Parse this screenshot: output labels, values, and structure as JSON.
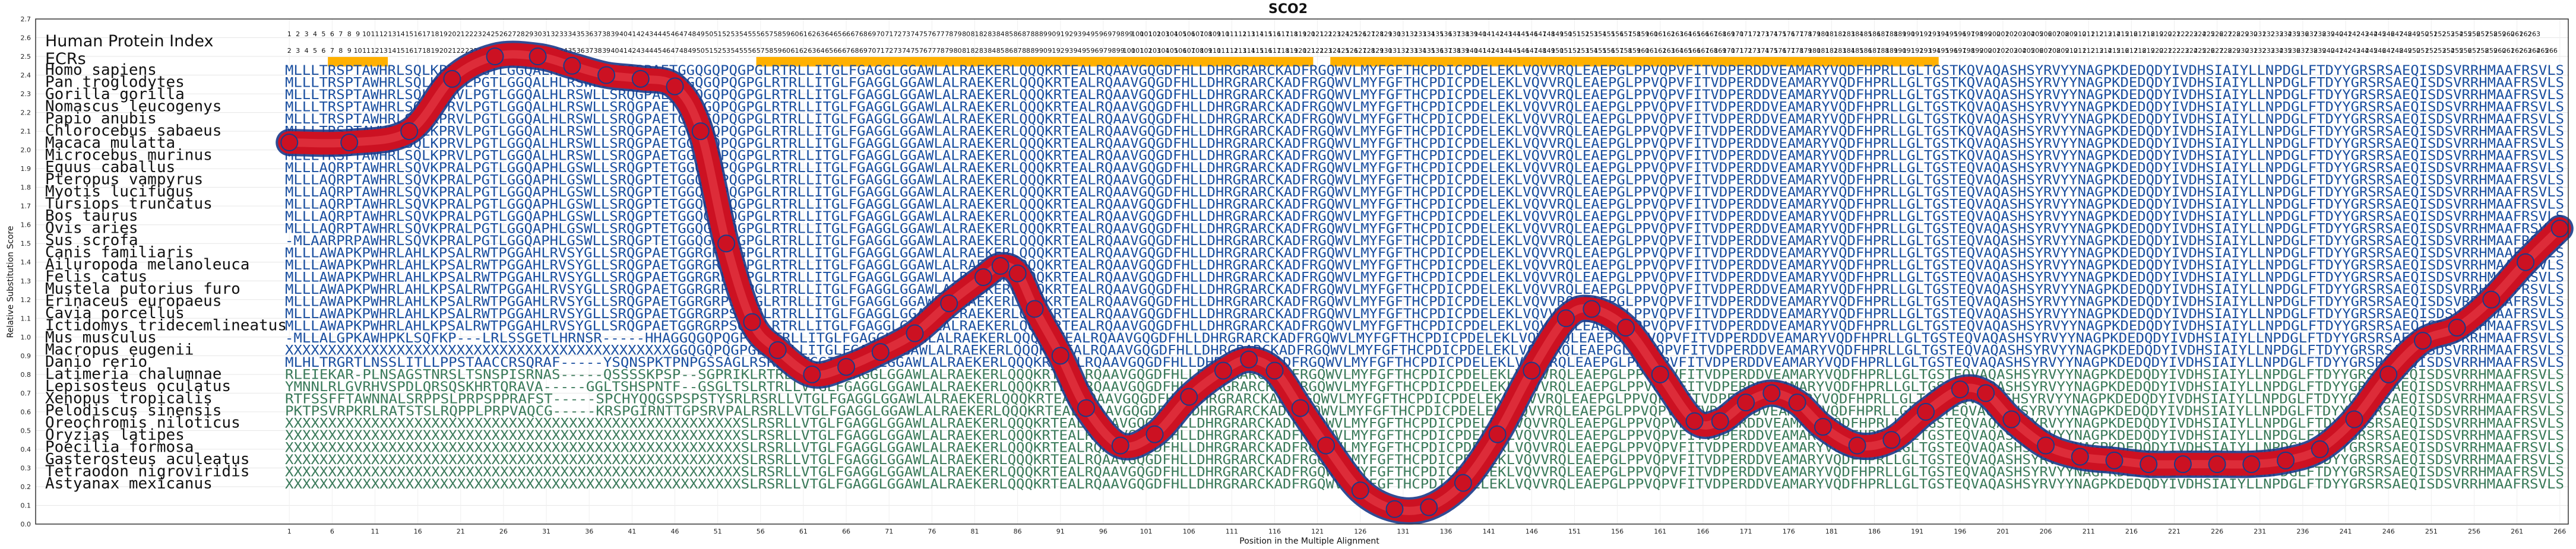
{
  "chart_data": {
    "type": "line",
    "title": "SCO2",
    "xlabel": "Position in the Multiple Alignment",
    "ylabel": "Relative Substitution Score",
    "ylim": [
      0,
      2.7
    ],
    "xlim": [
      1,
      266
    ],
    "y_ticks": [
      "0.0",
      "0.1",
      "0.2",
      "0.3",
      "0.4",
      "0.5",
      "0.6",
      "0.7",
      "0.8",
      "0.9",
      "1.0",
      "1.1",
      "1.2",
      "1.3",
      "1.4",
      "1.5",
      "1.6",
      "1.7",
      "1.8",
      "1.9",
      "2.0",
      "2.1",
      "2.2",
      "2.3",
      "2.4",
      "2.5",
      "2.6",
      "2.7"
    ],
    "x_ticks": [
      "1",
      "6",
      "11",
      "16",
      "21",
      "26",
      "31",
      "36",
      "41",
      "46",
      "51",
      "56",
      "61",
      "66",
      "71",
      "76",
      "81",
      "86",
      "91",
      "96",
      "101",
      "106",
      "111",
      "116",
      "121",
      "126",
      "131",
      "136",
      "141",
      "146",
      "151",
      "156",
      "161",
      "166",
      "171",
      "176",
      "181",
      "186",
      "191",
      "196",
      "201",
      "206",
      "211",
      "216",
      "221",
      "226",
      "231",
      "236",
      "241",
      "246",
      "251",
      "256",
      "261",
      "266"
    ],
    "grid": true,
    "legend": "none",
    "index_row_1": {
      "label": "Human Protein Index",
      "start": 1,
      "end": 263
    },
    "index_row_2": {
      "label": "ECRs",
      "start": 2,
      "end": 266,
      "highlight_ranges": [
        [
          6,
          12
        ],
        [
          56,
          120
        ],
        [
          123,
          193
        ]
      ]
    },
    "curve": {
      "name": "",
      "x": [
        1,
        8,
        15,
        20,
        25,
        30,
        34,
        38,
        42,
        46,
        49,
        52,
        55,
        58,
        62,
        66,
        70,
        74,
        78,
        82,
        84,
        86,
        88,
        91,
        94,
        98,
        102,
        106,
        110,
        113,
        116,
        119,
        122,
        126,
        130,
        134,
        138,
        142,
        146,
        150,
        153,
        157,
        161,
        165,
        168,
        171,
        174,
        177,
        180,
        184,
        188,
        192,
        196,
        199,
        202,
        206,
        210,
        214,
        218,
        222,
        226,
        230,
        234,
        238,
        242,
        246,
        250,
        254,
        258,
        262,
        266
      ],
      "y": [
        2.04,
        2.04,
        2.1,
        2.38,
        2.5,
        2.5,
        2.45,
        2.4,
        2.38,
        2.34,
        2.1,
        1.5,
        1.08,
        0.93,
        0.8,
        0.84,
        0.92,
        1.02,
        1.18,
        1.32,
        1.38,
        1.34,
        1.15,
        0.9,
        0.62,
        0.42,
        0.48,
        0.68,
        0.82,
        0.88,
        0.82,
        0.62,
        0.42,
        0.18,
        0.08,
        0.09,
        0.22,
        0.48,
        0.82,
        1.1,
        1.15,
        1.05,
        0.8,
        0.55,
        0.55,
        0.65,
        0.7,
        0.65,
        0.52,
        0.42,
        0.45,
        0.6,
        0.72,
        0.7,
        0.56,
        0.42,
        0.36,
        0.34,
        0.32,
        0.32,
        0.32,
        0.32,
        0.34,
        0.4,
        0.56,
        0.8,
        0.98,
        1.05,
        1.2,
        1.4,
        1.58
      ],
      "color": "#cc1122",
      "marker_edge_color": "#1a3a8a"
    },
    "alignment": {
      "species": [
        "Homo sapiens",
        "Pan troglodytes",
        "Gorilla gorilla",
        "Nomascus leucogenys",
        "Papio anubis",
        "Chlorocebus sabaeus",
        "Macaca mulatta",
        "Microcebus murinus",
        "Equus caballus",
        "Pteropus vampyrus",
        "Myotis lucifugus",
        "Tursiops truncatus",
        "Bos taurus",
        "Ovis aries",
        "Sus scrofa",
        "Canis familiaris",
        "Ailuropoda melanoleuca",
        "Felis catus",
        "Mustela putorius furo",
        "Erinaceus europaeus",
        "Cavia porcellus",
        "Ictidomys tridecemlineatus",
        "Mus musculus",
        "Macropus eugenii",
        "Danio rerio",
        "Latimeria chalumnae",
        "Lepisosteus oculatus",
        "Xenopus tropicalis",
        "Pelodiscus sinensis",
        "Oreochromis niloticus",
        "Oryzias latipes",
        "Poecilia formosa",
        "Gasterosteus aculeatus",
        "Tetraodon nigroviridis",
        "Astyanax mexicanus"
      ],
      "sequences": [
        "MLLLTRSPTAWHRLSQLKPRVLPGTLGGQALHLRSWLLSRQGPAETGGQGQPQGPGLRTRLLITGLFGAGGLGGAWLALRAEKERLQQQKRTEALRQAAVGQGDFHLLDHRGRARCKADFRGQWVLMYFGFTHCPDICPDELEKLVQVVRQLEAEPGLPPVQPVFITVDPERDDVEAMARYVQDFHPRLLGLTGSTKQVAQASHSYRVYYNAGPKDEDQDYIVDHSIAIYLLNPDGLFTDYYGRSRSAEQISDSVRRHMAAFRSVLS",
        "MLLLTRSPTAWHRLSQLKPRVLPGTLGGQALHLRSWLLSRQGPAETGGQGQPQGPGLRTRLLITGLFGAGGLGGAWLALRAEKERLQQQKRTEALRQAAVGQGDFHLLDHRGRARCKADFRGQWVLMYFGFTHCPDICPDELEKLVQVVRQLEAEPGLPPVQPVFITVDPERDDVEAMARYVQDFHPRLLGLTGSTKQVAQASHSYRVYYNAGPKDEDQDYIVDHSIAIYLLNPDGLFTDYYGRSRSAEQISDSVRRHMAAFRSVLS",
        "MLLLTRSPTAWHRLSQLKPRVLPGTLGGQALHLRSWLLSRQGPAETGGQGQPQGPGLRTRLLITGLFGAGGLGGAWLALRAEKERLQQQKRTEALRQAAVGQGDFHLLDHRGRARCKADFRGQWVLMYFGFTHCPDICPDELEKLVQVVRQLEAEPGLPPVQPVFITVDPERDDVEAMARYVQDFHPRLLGLTGSTKQVAQASHSYRVYYNAGPKDEDQDYIVDHSIAIYLLNPDGLFTDYYGRSRSAEQISDSVRRHMAAFRSVLS",
        "MLLLTRSPTAWHRLSQLKPRVLPGTLGGQALHLRSWLLSRQGPAETGGQGQPQGPGLRTRLLITGLFGAGGLGGAWLALRAEKERLQQQKRTEALRQAAVGQGDFHLLDHRGRARCKADFRGQWVLMYFGFTHCPDICPDELEKLVQVVRQLEAEPGLPPVQPVFITVDPERDDVEAMARYVQDFHPRLLGLTGSTKQVAQASHSYRVYYNAGPKDEDQDYIVDHSIAIYLLNPDGLFTDYYGRSRSAEQISDSVRRHMAAFRSVLS",
        "MLLLTRSPTAWHRLSQLKPRVLPGTLGGQALHLRSWLLSRQGPAETGGQGQPQGPGLRTRLLITGLFGAGGLGGAWLALRAEKERLQQQKRTEALRQAAVGQGDFHLLDHRGRARCKADFRGQWVLMYFGFTHCPDICPDELEKLVQVVRQLEAEPGLPPVQPVFITVDPERDDVEAMARYVQDFHPRLLGLTGSTKQVAQASHSYRVYYNAGPKDEDQDYIVDHSIAIYLLNPDGLFTDYYGRSRSAEQISDSVRRHMAAFRSVLS",
        "MLLLTRSPTAWHRLSQLKPRVLPGTLGGQALHLRSWLLSRQGPAETGGQGQPQGPGLRTRLLITGLFGAGGLGGAWLALRAEKERLQQQKRTEALRQAAVGQGDFHLLDHRGRARCKADFRGQWVLMYFGFTHCPDICPDELEKLVQVVRQLEAEPGLPPVQPVFITVDPERDDVEAMARYVQDFHPRLLGLTGSTKQVAQASHSYRVYYNAGPKDEDQDYIVDHSIAIYLLNPDGLFTDYYGRSRSAEQISDSVRRHMAAFRSVLS",
        "MLLLTRSPTAWHRLSQLKPRVLPGTLGGQALHLRSWLLSRQGPAETGGQGQPQGPGLRTRLLITGLFGAGGLGGAWLALRAEKERLQQQKRTEALRQAAVGQGDFHLLDHRGRARCKADFRGQWVLMYFGFTHCPDICPDELEKLVQVVRQLEAEPGLPPVQPVFITVDPERDDVEAMARYVQDFHPRLLGLTGSTKQVAQASHSYRVYYNAGPKDEDQDYIVDHSIAIYLLNPDGLFTDYYGRSRSAEQISDSVRRHMAAFRSVLS",
        "MLLLTRSPTAWHRLSQLKPRVLPGTLGGQALHLRSWLLSRQGPAETGGQGQPQGPGLRTRLLITGLFGAGGLGGAWLALRAEKERLQQQKRTEALRQAAVGQGDFHLLDHRGRARCKADFRGQWVLMYFGFTHCPDICPDELEKLVQVVRQLEAEPGLPPVQPVFITVDPERDDVEAMARYVQDFHPRLLGLTGSTKQVAQASHSYRVYYNAGPKDEDQDYIVDHSIAIYLLNPDGLFTDYYGRSRSAEQISDSVRRHMAAFRSVLS",
        "MLLLAQRPTAWHRLSQVKPRALPGTLGGQAPHLGSWLLSRQGPTETGGQGQPQGPGLRTRLLITGLFGAGGLGGAWLALRAEKERLQQQKRTEALRQAAVGQGDFHLLDHRGRARCKADFRGQWVLMYFGFTHCPDICPDELEKLVQVVRQLEAEPGLPPVQPVFITVDPERDDVEAMARYVQDFHPRLLGLTGSTEQVAQASHSYRVYYNAGPKDEDQDYIVDHSIAIYLLNPDGLFTDYYGRSRSAEQISDSVRRHMAAFRSVLS",
        "MLLLAQRPTAWHRLSQVKPRALPGTLGGQAPHLGSWLLSRQGPTETGGQGQPQGPGLRTRLLITGLFGAGGLGGAWLALRAEKERLQQQKRTEALRQAAVGQGDFHLLDHRGRARCKADFRGQWVLMYFGFTHCPDICPDELEKLVQVVRQLEAEPGLPPVQPVFITVDPERDDVEAMARYVQDFHPRLLGLTGSTEQVAQASHSYRVYYNAGPKDEDQDYIVDHSIAIYLLNPDGLFTDYYGRSRSAEQISDSVRRHMAAFRSVLS",
        "MLLLAQRPTAWHRLSQVKPRALPGTLGGQAPHLGSWLLSRQGPTETGGQGQPQGPGLRTRLLITGLFGAGGLGGAWLALRAEKERLQQQKRTEALRQAAVGQGDFHLLDHRGRARCKADFRGQWVLMYFGFTHCPDICPDELEKLVQVVRQLEAEPGLPPVQPVFITVDPERDDVEAMARYVQDFHPRLLGLTGSTEQVAQASHSYRVYYNAGPKDEDQDYIVDHSIAIYLLNPDGLFTDYYGRSRSAEQISDSVRRHMAAFRSVLS",
        "MLLLAQRPTAWHRLSQVKPRALPGTLGGQAPHLGSWLLSRQGPTETGGQGQPQGPGLRTRLLITGLFGAGGLGGAWLALRAEKERLQQQKRTEALRQAAVGQGDFHLLDHRGRARCKADFRGQWVLMYFGFTHCPDICPDELEKLVQVVRQLEAEPGLPPVQPVFITVDPERDDVEAMARYVQDFHPRLLGLTGSTEQVAQASHSYRVYYNAGPKDEDQDYIVDHSIAIYLLNPDGLFTDYYGRSRSAEQISDSVRRHMAAFRSVLS",
        "MLLLAQRPTAWHRLSQVKPRALPGTLGGQAPHLGSWLLSRQGPTETGGQGQPQGPGLRTRLLITGLFGAGGLGGAWLALRAEKERLQQQKRTEALRQAAVGQGDFHLLDHRGRARCKADFRGQWVLMYFGFTHCPDICPDELEKLVQVVRQLEAEPGLPPVQPVFITVDPERDDVEAMARYVQDFHPRLLGLTGSTEQVAQASHSYRVYYNAGPKDEDQDYIVDHSIAIYLLNPDGLFTDYYGRSRSAEQISDSVRRHMAAFRSVLS",
        "MLLLAQRPTAWHRLSQVKPRALPGTLGGQAPHLGSWLLSRQGPTETGGQGQPQGPGLRTRLLITGLFGAGGLGGAWLALRAEKERLQQQKRTEALRQAAVGQGDFHLLDHRGRARCKADFRGQWVLMYFGFTHCPDICPDELEKLVQVVRQLEAEPGLPPVQPVFITVDPERDDVEAMARYVQDFHPRLLGLTGSTEQVAQASHSYRVYYNAGPKDEDQDYIVDHSIAIYLLNPDGLFTDYYGRSRSAEQISDSVRRHMAAFRSVLS",
        "-MLAARPRPAWHRLSQVKPRALPGTLGGQAPHLGSWLLSRQGPTETGGQGQPQGPGLRTRLLITGLFGAGGLGGAWLALRAEKERLQQQKRTEALRQAAVGQGDFHLLDHRGRARCKADFRGQWVLMYFGFTHCPDICPDELEKLVQVVRQLEAEPGLPPVQPVFITVDPERDDVEAMARYVQDFHPRLLGLTGSTEQVAQASHSYRVYYNAGPKDEDQDYIVDHSIAIYLLNPDGLFTDYYGRSRSAEQISDSVRRHMAAFRSVLS",
        "MLLLAWAPKPWHRLAHLKPSALRWTPGGAHLRVSYGLLSRQGPAETGGRGRPSGPGLRTRLLITGLFGAGGLGGAWLALRAEKERLQQQKRTEALRQAAVGQGDFHLLDHRGRARCKADFRGQWVLMYFGFTHCPDICPDELEKLVQVVRQLEAEPGLPPVQPVFITVDPERDDVEAMARYVQDFHPRLLGLTGSTEQVAQASHSYRVYYNAGPKDEDQDYIVDHSIAIYLLNPDGLFTDYYGRSRSAEQISDSVRRHMAAFRSVLS",
        "MLLLAWAPKPWHRLAHLKPSALRWTPGGAHLRVSYGLLSRQGPAETGGRGRPSGPGLRTRLLITGLFGAGGLGGAWLALRAEKERLQQQKRTEALRQAAVGQGDFHLLDHRGRARCKADFRGQWVLMYFGFTHCPDICPDELEKLVQVVRQLEAEPGLPPVQPVFITVDPERDDVEAMARYVQDFHPRLLGLTGSTEQVAQASHSYRVYYNAGPKDEDQDYIVDHSIAIYLLNPDGLFTDYYGRSRSAEQISDSVRRHMAAFRSVLS",
        "MLLLAWAPKPWHRLAHLKPSALRWTPGGAHLRVSYGLLSRQGPAETGGRGRPSGPGLRTRLLITGLFGAGGLGGAWLALRAEKERLQQQKRTEALRQAAVGQGDFHLLDHRGRARCKADFRGQWVLMYFGFTHCPDICPDELEKLVQVVRQLEAEPGLPPVQPVFITVDPERDDVEAMARYVQDFHPRLLGLTGSTEQVAQASHSYRVYYNAGPKDEDQDYIVDHSIAIYLLNPDGLFTDYYGRSRSAEQISDSVRRHMAAFRSVLS",
        "MLLLAWAPKPWHRLAHLKPSALRWTPGGAHLRVSYGLLSRQGPAETGGRGRPSGPGLRTRLLITGLFGAGGLGGAWLALRAEKERLQQQKRTEALRQAAVGQGDFHLLDHRGRARCKADFRGQWVLMYFGFTHCPDICPDELEKLVQVVRQLEAEPGLPPVQPVFITVDPERDDVEAMARYVQDFHPRLLGLTGSTEQVAQASHSYRVYYNAGPKDEDQDYIVDHSIAIYLLNPDGLFTDYYGRSRSAEQISDSVRRHMAAFRSVLS",
        "MLLLAWAPKPWHRLAHLKPSALRWTPGGAHLRVSYGLLSRQGPAETGGRGRPSGPGLRTRLLITGLFGAGGLGGAWLALRAEKERLQQQKRTEALRQAAVGQGDFHLLDHRGRARCKADFRGQWVLMYFGFTHCPDICPDELEKLVQVVRQLEAEPGLPPVQPVFITVDPERDDVEAMARYVQDFHPRLLGLTGSTEQVAQASHSYRVYYNAGPKDEDQDYIVDHSIAIYLLNPDGLFTDYYGRSRSAEQISDSVRRHMAAFRSVLS",
        "MLLLAWAPKPWHRLAHLKPSALRWTPGGAHLRVSYGLLSRQGPAETGGRGRPSGPGLRTRLLITGLFGAGGLGGAWLALRAEKERLQQQKRTEALRQAAVGQGDFHLLDHRGRARCKADFRGQWVLMYFGFTHCPDICPDELEKLVQVVRQLEAEPGLPPVQPVFITVDPERDDVEAMARYVQDFHPRLLGLTGSTEQVAQASHSYRVYYNAGPKDEDQDYIVDHSIAIYLLNPDGLFTDYYGRSRSAEQISDSVRRHMAAFRSVLS",
        "MLLLAWAPKPWHRLAHLKPSALRWTPGGAHLRVSYGLLSRQGPAETGGRGRPSGPGLRTRLLITGLFGAGGLGGAWLALRAEKERLQQQKRTEALRQAAVGQGDFHLLDHRGRARCKADFRGQWVLMYFGFTHCPDICPDELEKLVQVVRQLEAEPGLPPVQPVFITVDPERDDVEAMARYVQDFHPRLLGLTGSTEQVAQASHSYRVYYNAGPKDEDQDYIVDHSIAIYLLNPDGLFTDYYGRSRSAEQISDSVRRHMAAFRSVLS",
        "-MLLALGPKAWHPKLSQFKP---LRLSSGETLHRNSR-----HHAGGQGQPQGPGLRTRLLITGLFGAGGLGGAWLALRAEKERLQQQKRTEALRQAAVGQGDFHLLDHRGRARCKADFRGQWVLMYFGFTHCPDICPDELEKLVQVVRQLEAEPGLPPVQPVFITVDPERDDVEAMARYVQDFHPRLLGLTGSTEQVAQASHSYRVYYNAGPKDEDQDYIVDHSIAIYLLNPDGLFTDYYGRSRSAEQISDSVRRHMAAFRSVLS",
        "XXXXXXXXXXXXXXXXXXXXXXXXXXXXXXXXXXXXXXXXXXXXXGGQGQPQGPGLRTRLLITGLFGAGGLGGAWLALRAEKERLQQQKRTEALRQAAVGQGDFHLLDHRGRARCKADFRGQWVLMYFGFTHCPDICPDELEKLVQVVRQLEAEPGLPPVQPVFITVDPERDDVEAMARYVQDFHPRLLGLTGSTEQVAQASHSYRVYYNAGPKDEDQDYIVDHSIAIYLLNPDGLFTDYYGRSRSAEQISDSVRRHMAAFRSVLS",
        "MLHLTRGRTLNSSLITLLPPSTAACCRSQRAF-----YSQNSPKTPNPGSSAGLRSRLLVTGGIGGAGGLGGAWLALRAEKERLQQQKRTEALRQAAVGQGDFHLLDHRGRARCKADFRGQWVLMYFGFTHCPDICPDELEKLVQVVRQLEAEPGLPPVQPVFITVDPERDDVEAMARYVQDFHPRLLGLTGSTEQVAQASHSYRVYYNAGPKDEDQDYIVDHSIAIYLLNPDGLFTDYYGRSRSAEQISDSVRRHMAAFRSVLS",
        "RLEIEKAR-PLNSAGSTNRSLTSNSPISRNAS-----QSSSSKPSP--SGPRIKLRTRLLVTGLFGAGGLGGAWLALRAEKERLQQQKRTEALRQAAVGQGDFHLLDHRGRARCKADFRGQWVLMYFGFTHCPDICPDELEKLVQVVRQLEAEPGLPPVQPVFITVDPERDDVEAMARYVQDFHPRLLGLTGSTEQVAQASHSYRVYYNAGPKDEDQDYIVDHSIAIYLLNPDGLFTDYYGRSRSAEQISDSVRRHMAAFRSVLS",
        "YMNNLRLGVRHVSPDLQRSQSKHRTQRAVA-----GGLTSHSPNTF--GSGLTSLRTRLLVTGLFGAGGLGGAWLALRAEKERLQQQKRTEALRQAAVGQGDFHLLDHRGRARCKADFRGQWVLMYFGFTHCPDICPDELEKLVQVVRQLEAEPGLPPVQPVFITVDPERDDVEAMARYVQDFHPRLLGLTGSTEQVAQASHSYRVYYNAGPKDEDQDYIVDHSIAIYLLNPDGLFTDYYGRSRSAEQISDSVRRHMAAFRSVLS",
        "RTFSSFFTAWNNALSRPPSLPRPSPPRAFST-----SPCHYQQGSPSPSTYSRLRSRLLVTGLFGAGGLGGAWLALRAEKERLQQQKRTEALRQAAVGQGDFHLLDHRGRARCKADFRGQWVLMYFGFTHCPDICPDELEKLVQVVRQLEAEPGLPPVQPVFITVDPERDDVEAMARYVQDFHPRLLGLTGSTEQVAQASHSYRVYYNAGPKDEDQDYIVDHSIAIYLLNPDGLFTDYYGRSRSAEQISDSVRRHMAAFRSVLS",
        "PKTPSVRPKRLRATSTSLRQPPLPRPVAQCG-----KRSPGIRNTTGPSRVPALRSRLLVTGLFGAGGLGGAWLALRAEKERLQQQKRTEALRQAAVGQGDFHLLDHRGRARCKADFRGQWVLMYFGFTHCPDICPDELEKLVQVVRQLEAEPGLPPVQPVFITVDPERDDVEAMARYVQDFHPRLLGLTGSTEQVAQASHSYRVYYNAGPKDEDQDYIVDHSIAIYLLNPDGLFTDYYGRSRSAEQISDSVRRHMAAFRSVLS",
        "XXXXXXXXXXXXXXXXXXXXXXXXXXXXXXXXXXXXXXXXXXXXXXXXXXXXXSLRSRLLVTGLFGAGGLGGAWLALRAEKERLQQQKRTEALRQAAVGQGDFHLLDHRGRARCKADFRGQWVLMYFGFTHCPDICPDELEKLVQVVRQLEAEPGLPPVQPVFITVDPERDDVEAMARYVQDFHPRLLGLTGSTEQVAQASHSYRVYYNAGPKDEDQDYIVDHSIAIYLLNPDGLFTDYYGRSRSAEQISDSVRRHMAAFRSVLS",
        "XXXXXXXXXXXXXXXXXXXXXXXXXXXXXXXXXXXXXXXXXXXXXXXXXXXXXSLRSRLLVTGLFGAGGLGGAWLALRAEKERLQQQKRTEALRQAAVGQGDFHLLDHRGRARCKADFRGQWVLMYFGFTHCPDICPDELEKLVQVVRQLEAEPGLPPVQPVFITVDPERDDVEAMARYVQDFHPRLLGLTGSTEQVAQASHSYRVYYNAGPKDEDQDYIVDHSIAIYLLNPDGLFTDYYGRSRSAEQISDSVRRHMAAFRSVLS",
        "XXXXXXXXXXXXXXXXXXXXXXXXXXXXXXXXXXXXXXXXXXXXXXXXXXXXXSLRSRLLVTGLFGAGGLGGAWLALRAEKERLQQQKRTEALRQAAVGQGDFHLLDHRGRARCKADFRGQWVLMYFGFTHCPDICPDELEKLVQVVRQLEAEPGLPPVQPVFITVDPERDDVEAMARYVQDFHPRLLGLTGSTEQVAQASHSYRVYYNAGPKDEDQDYIVDHSIAIYLLNPDGLFTDYYGRSRSAEQISDSVRRHMAAFRSVLS",
        "XXXXXXXXXXXXXXXXXXXXXXXXXXXXXXXXXXXXXXXXXXXXXXXXXXXXXSLRSRLLVTGLFGAGGLGGAWLALRAEKERLQQQKRTEALRQAAVGQGDFHLLDHRGRARCKADFRGQWVLMYFGFTHCPDICPDELEKLVQVVRQLEAEPGLPPVQPVFITVDPERDDVEAMARYVQDFHPRLLGLTGSTEQVAQASHSYRVYYNAGPKDEDQDYIVDHSIAIYLLNPDGLFTDYYGRSRSAEQISDSVRRHMAAFRSVLS",
        "XXXXXXXXXXXXXXXXXXXXXXXXXXXXXXXXXXXXXXXXXXXXXXXXXXXXXSLRSRLLVTGLFGAGGLGGAWLALRAEKERLQQQKRTEALRQAAVGQGDFHLLDHRGRARCKADFRGQWVLMYFGFTHCPDICPDELEKLVQVVRQLEAEPGLPPVQPVFITVDPERDDVEAMARYVQDFHPRLLGLTGSTEQVAQASHSYRVYYNAGPKDEDQDYIVDHSIAIYLLNPDGLFTDYYGRSRSAEQISDSVRRHMAAFRSVLS",
        "XXXXXXXXXXXXXXXXXXXXXXXXXXXXXXXXXXXXXXXXXXXXXXXXXXXXXSLRSRLLVTGLFGAGGLGGAWLALRAEKERLQQQKRTEALRQAAVGQGDFHLLDHRGRARCKADFRGQWVLMYFGFTHCPDICPDELEKLVQVVRQLEAEPGLPPVQPVFITVDPERDDVEAMARYVQDFHPRLLGLTGSTEQVAQASHSYRVYYNAGPKDEDQDYIVDHSIAIYLLNPDGLFTDYYGRSRSAEQISDSVRRHMAAFRSVLS"
      ],
      "residue_color": "#1a4fa0",
      "residue_color_variable": "#3a7a5a"
    }
  }
}
